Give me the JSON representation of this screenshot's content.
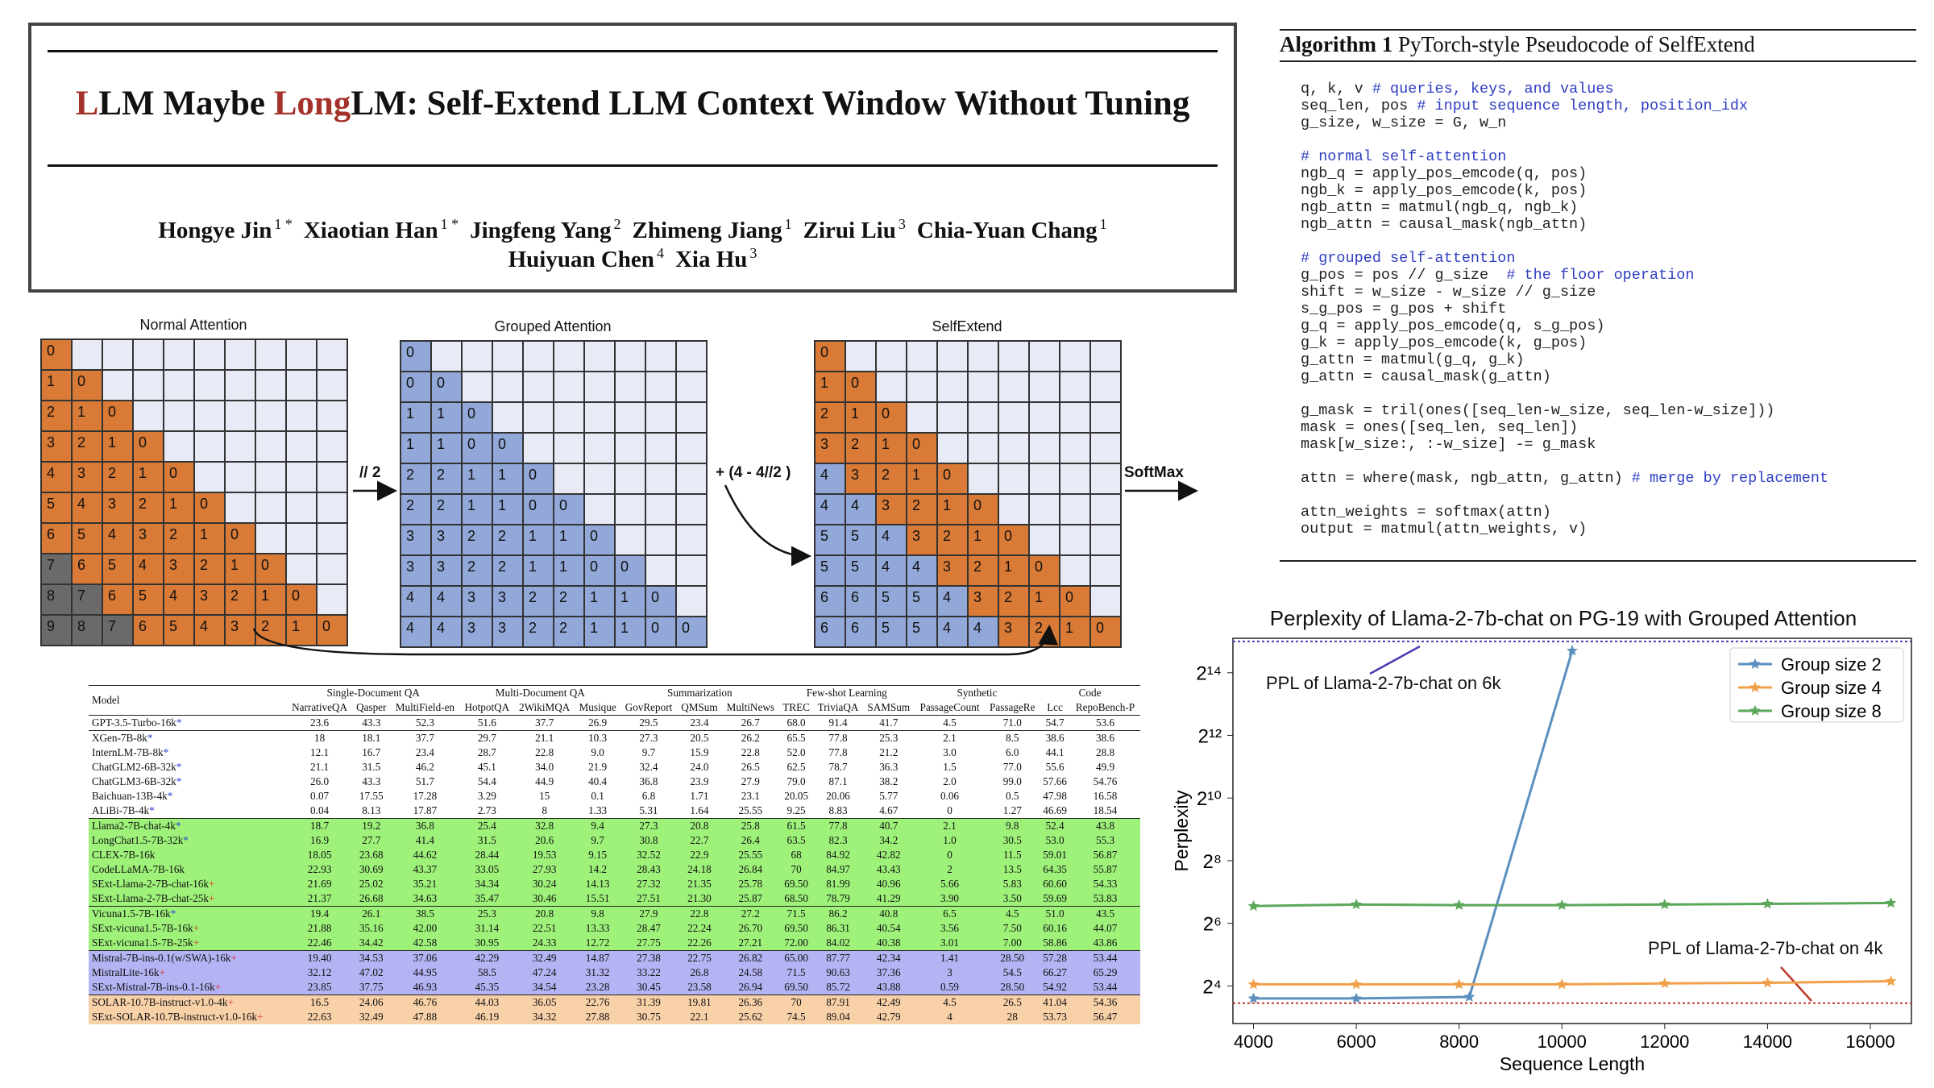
{
  "paper": {
    "title_parts": [
      "L",
      "LM Maybe ",
      "Long",
      "LM: Self-Extend LLM Context Window Without Tuning"
    ],
    "authors_line1": [
      {
        "name": "Hongye Jin",
        "aff": "1 *"
      },
      {
        "name": "Xiaotian Han",
        "aff": "1 *"
      },
      {
        "name": "Jingfeng Yang",
        "aff": "2"
      },
      {
        "name": "Zhimeng Jiang",
        "aff": "1"
      },
      {
        "name": "Zirui Liu",
        "aff": "3"
      },
      {
        "name": "Chia-Yuan Chang",
        "aff": "1"
      }
    ],
    "authors_line2": [
      {
        "name": "Huiyuan Chen",
        "aff": "4"
      },
      {
        "name": "Xia Hu",
        "aff": "3"
      }
    ]
  },
  "figure": {
    "normal_title": "Normal Attention",
    "grouped_title": "Grouped Attention",
    "selfextend_title": "SelfExtend",
    "op1": "// 2",
    "op2": "+ (4 - 4//2 )",
    "op3": "SoftMax",
    "colors": {
      "orange": "#d97a36",
      "blue": "#91a8d8",
      "gray": "#6a6a6a",
      "empty": "#e8eaf5"
    },
    "normal_rows": [
      [
        "0"
      ],
      [
        "1",
        "0"
      ],
      [
        "2",
        "1",
        "0"
      ],
      [
        "3",
        "2",
        "1",
        "0"
      ],
      [
        "4",
        "3",
        "2",
        "1",
        "0"
      ],
      [
        "5",
        "4",
        "3",
        "2",
        "1",
        "0"
      ],
      [
        "6",
        "5",
        "4",
        "3",
        "2",
        "1",
        "0"
      ],
      [
        "7",
        "6",
        "5",
        "4",
        "3",
        "2",
        "1",
        "0"
      ],
      [
        "8",
        "7",
        "6",
        "5",
        "4",
        "3",
        "2",
        "1",
        "0"
      ],
      [
        "9",
        "8",
        "7",
        "6",
        "5",
        "4",
        "3",
        "2",
        "1",
        "0"
      ]
    ],
    "grouped_rows": [
      [
        "0"
      ],
      [
        "0",
        "0"
      ],
      [
        "1",
        "1",
        "0"
      ],
      [
        "1",
        "1",
        "0",
        "0"
      ],
      [
        "2",
        "2",
        "1",
        "1",
        "0"
      ],
      [
        "2",
        "2",
        "1",
        "1",
        "0",
        "0"
      ],
      [
        "3",
        "3",
        "2",
        "2",
        "1",
        "1",
        "0"
      ],
      [
        "3",
        "3",
        "2",
        "2",
        "1",
        "1",
        "0",
        "0"
      ],
      [
        "4",
        "4",
        "3",
        "3",
        "2",
        "2",
        "1",
        "1",
        "0"
      ],
      [
        "4",
        "4",
        "3",
        "3",
        "2",
        "2",
        "1",
        "1",
        "0",
        "0"
      ]
    ],
    "selfextend_rows": [
      [
        "0"
      ],
      [
        "1",
        "0"
      ],
      [
        "2",
        "1",
        "0"
      ],
      [
        "3",
        "2",
        "1",
        "0"
      ],
      [
        "4",
        "3",
        "2",
        "1",
        "0"
      ],
      [
        "4",
        "4",
        "3",
        "2",
        "1",
        "0"
      ],
      [
        "5",
        "5",
        "4",
        "3",
        "2",
        "1",
        "0"
      ],
      [
        "5",
        "5",
        "4",
        "4",
        "3",
        "2",
        "1",
        "0"
      ],
      [
        "6",
        "6",
        "5",
        "5",
        "4",
        "3",
        "2",
        "1",
        "0"
      ],
      [
        "6",
        "6",
        "5",
        "5",
        "4",
        "4",
        "3",
        "2",
        "1",
        "0"
      ]
    ]
  },
  "algorithm": {
    "label": "Algorithm 1",
    "caption": "PyTorch-style Pseudocode of SelfExtend",
    "lines": [
      [
        "q, k, v ",
        "# queries, keys, and values"
      ],
      [
        "seq_len, pos ",
        "# input sequence length, position_idx"
      ],
      [
        "g_size, w_size = G, w_n",
        ""
      ],
      [
        "",
        ""
      ],
      [
        "",
        "# normal self-attention"
      ],
      [
        "ngb_q = apply_pos_emcode(q, pos)",
        ""
      ],
      [
        "ngb_k = apply_pos_emcode(k, pos)",
        ""
      ],
      [
        "ngb_attn = matmul(ngb_q, ngb_k)",
        ""
      ],
      [
        "ngb_attn = causal_mask(ngb_attn)",
        ""
      ],
      [
        "",
        ""
      ],
      [
        "",
        "# grouped self-attention"
      ],
      [
        "g_pos = pos // g_size  ",
        "# the floor operation"
      ],
      [
        "shift = w_size - w_size // g_size",
        ""
      ],
      [
        "s_g_pos = g_pos + shift",
        ""
      ],
      [
        "g_q = apply_pos_emcode(q, s_g_pos)",
        ""
      ],
      [
        "g_k = apply_pos_emcode(k, g_pos)",
        ""
      ],
      [
        "g_attn = matmul(g_q, g_k)",
        ""
      ],
      [
        "g_attn = causal_mask(g_attn)",
        ""
      ],
      [
        "",
        ""
      ],
      [
        "g_mask = tril(ones([seq_len-w_size, seq_len-w_size]))",
        ""
      ],
      [
        "mask = ones([seq_len, seq_len])",
        ""
      ],
      [
        "mask[w_size:, :-w_size] -= g_mask",
        ""
      ],
      [
        "",
        ""
      ],
      [
        "attn = where(mask, ngb_attn, g_attn) ",
        "# merge by replacement"
      ],
      [
        "",
        ""
      ],
      [
        "attn_weights = softmax(attn)",
        ""
      ],
      [
        "output = matmul(attn_weights, v)",
        ""
      ]
    ]
  },
  "table": {
    "model_header": "Model",
    "groups": [
      {
        "label": "Single-Document QA",
        "span": 3
      },
      {
        "label": "Multi-Document QA",
        "span": 3
      },
      {
        "label": "Summarization",
        "span": 3
      },
      {
        "label": "Few-shot Learning",
        "span": 3
      },
      {
        "label": "Synthetic",
        "span": 2
      },
      {
        "label": "Code",
        "span": 2
      }
    ],
    "columns": [
      "NarrativeQA",
      "Qasper",
      "MultiField-en",
      "HotpotQA",
      "2WikiMQA",
      "Musique",
      "GovReport",
      "QMSum",
      "MultiNews",
      "TREC",
      "TriviaQA",
      "SAMSum",
      "PassageCount",
      "PassageRe",
      "Lcc",
      "RepoBench-P"
    ],
    "rows": [
      {
        "model": "GPT-3.5-Turbo-16k",
        "mark": "*",
        "group": "none",
        "sep": true,
        "values": [
          "23.6",
          "43.3",
          "52.3",
          "51.6",
          "37.7",
          "26.9",
          "29.5",
          "23.4",
          "26.7",
          "68.0",
          "91.4",
          "41.7",
          "4.5",
          "71.0",
          "54.7",
          "53.6"
        ]
      },
      {
        "model": "XGen-7B-8k",
        "mark": "*",
        "group": "none",
        "sep": true,
        "values": [
          "18",
          "18.1",
          "37.7",
          "29.7",
          "21.1",
          "10.3",
          "27.3",
          "20.5",
          "26.2",
          "65.5",
          "77.8",
          "25.3",
          "2.1",
          "8.5",
          "38.6",
          "38.6"
        ]
      },
      {
        "model": "InternLM-7B-8k",
        "mark": "*",
        "group": "none",
        "values": [
          "12.1",
          "16.7",
          "23.4",
          "28.7",
          "22.8",
          "9.0",
          "9.7",
          "15.9",
          "22.8",
          "52.0",
          "77.8",
          "21.2",
          "3.0",
          "6.0",
          "44.1",
          "28.8"
        ]
      },
      {
        "model": "ChatGLM2-6B-32k",
        "mark": "*",
        "group": "none",
        "values": [
          "21.1",
          "31.5",
          "46.2",
          "45.1",
          "34.0",
          "21.9",
          "32.4",
          "24.0",
          "26.5",
          "62.5",
          "78.7",
          "36.3",
          "1.5",
          "77.0",
          "55.6",
          "49.9"
        ]
      },
      {
        "model": "ChatGLM3-6B-32k",
        "mark": "*",
        "group": "none",
        "values": [
          "26.0",
          "43.3",
          "51.7",
          "54.4",
          "44.9",
          "40.4",
          "36.8",
          "23.9",
          "27.9",
          "79.0",
          "87.1",
          "38.2",
          "2.0",
          "99.0",
          "57.66",
          "54.76"
        ]
      },
      {
        "model": "Baichuan-13B-4k",
        "mark": "*",
        "group": "none",
        "values": [
          "0.07",
          "17.55",
          "17.28",
          "3.29",
          "15",
          "0.1",
          "6.8",
          "1.71",
          "23.1",
          "20.05",
          "20.06",
          "5.77",
          "0.06",
          "0.5",
          "47.98",
          "16.58"
        ]
      },
      {
        "model": "ALiBi-7B-4k",
        "mark": "*",
        "group": "none",
        "values": [
          "0.04",
          "8.13",
          "17.87",
          "2.73",
          "8",
          "1.33",
          "5.31",
          "1.64",
          "25.55",
          "9.25",
          "8.83",
          "4.67",
          "0",
          "1.27",
          "46.69",
          "18.54"
        ]
      },
      {
        "model": "Llama2-7B-chat-4k",
        "mark": "*",
        "group": "green",
        "sep": true,
        "values": [
          "18.7",
          "19.2",
          "36.8",
          "25.4",
          "32.8",
          "9.4",
          "27.3",
          "20.8",
          "25.8",
          "61.5",
          "77.8",
          "40.7",
          "2.1",
          "9.8",
          "52.4",
          "43.8"
        ]
      },
      {
        "model": "LongChat1.5-7B-32k",
        "mark": "*",
        "group": "green",
        "values": [
          "16.9",
          "27.7",
          "41.4",
          "31.5",
          "20.6",
          "9.7",
          "30.8",
          "22.7",
          "26.4",
          "63.5",
          "82.3",
          "34.2",
          "1.0",
          "30.5",
          "53.0",
          "55.3"
        ]
      },
      {
        "model": "CLEX-7B-16k",
        "mark": "",
        "group": "green",
        "values": [
          "18.05",
          "23.68",
          "44.62",
          "28.44",
          "19.53",
          "9.15",
          "32.52",
          "22.9",
          "25.55",
          "68",
          "84.92",
          "42.82",
          "0",
          "11.5",
          "59.01",
          "56.87"
        ]
      },
      {
        "model": "CodeLLaMA-7B-16k",
        "mark": "",
        "group": "green",
        "values": [
          "22.93",
          "30.69",
          "43.37",
          "33.05",
          "27.93",
          "14.2",
          "28.43",
          "24.18",
          "26.84",
          "70",
          "84.97",
          "43.43",
          "2",
          "13.5",
          "64.35",
          "55.87"
        ]
      },
      {
        "model": "SExt-Llama-2-7B-chat-16k",
        "mark": "+",
        "group": "green",
        "values": [
          "21.69",
          "25.02",
          "35.21",
          "34.34",
          "30.24",
          "14.13",
          "27.32",
          "21.35",
          "25.78",
          "69.50",
          "81.99",
          "40.96",
          "5.66",
          "5.83",
          "60.60",
          "54.33"
        ]
      },
      {
        "model": "SExt-Llama-2-7B-chat-25k",
        "mark": "+",
        "group": "green",
        "values": [
          "21.37",
          "26.68",
          "34.63",
          "35.47",
          "30.46",
          "15.51",
          "27.51",
          "21.30",
          "25.87",
          "68.50",
          "78.79",
          "41.29",
          "3.90",
          "3.50",
          "59.69",
          "53.83"
        ]
      },
      {
        "model": "Vicuna1.5-7B-16k",
        "mark": "*",
        "group": "green",
        "sep": true,
        "values": [
          "19.4",
          "26.1",
          "38.5",
          "25.3",
          "20.8",
          "9.8",
          "27.9",
          "22.8",
          "27.2",
          "71.5",
          "86.2",
          "40.8",
          "6.5",
          "4.5",
          "51.0",
          "43.5"
        ]
      },
      {
        "model": "SExt-vicuna1.5-7B-16k",
        "mark": "+",
        "group": "green",
        "values": [
          "21.88",
          "35.16",
          "42.00",
          "31.14",
          "22.51",
          "13.33",
          "28.47",
          "22.24",
          "26.70",
          "69.50",
          "86.31",
          "40.54",
          "3.56",
          "7.50",
          "60.16",
          "44.07"
        ]
      },
      {
        "model": "SExt-vicuna1.5-7B-25k",
        "mark": "+",
        "group": "green",
        "values": [
          "22.46",
          "34.42",
          "42.58",
          "30.95",
          "24.33",
          "12.72",
          "27.75",
          "22.26",
          "27.21",
          "72.00",
          "84.02",
          "40.38",
          "3.01",
          "7.00",
          "58.86",
          "43.86"
        ]
      },
      {
        "model": "Mistral-7B-ins-0.1(w/SWA)-16k",
        "mark": "+",
        "group": "purple",
        "sep": true,
        "values": [
          "19.40",
          "34.53",
          "37.06",
          "42.29",
          "32.49",
          "14.87",
          "27.38",
          "22.75",
          "26.82",
          "65.00",
          "87.77",
          "42.34",
          "1.41",
          "28.50",
          "57.28",
          "53.44"
        ]
      },
      {
        "model": "MistralLite-16k",
        "mark": "+",
        "group": "purple",
        "values": [
          "32.12",
          "47.02",
          "44.95",
          "58.5",
          "47.24",
          "31.32",
          "33.22",
          "26.8",
          "24.58",
          "71.5",
          "90.63",
          "37.36",
          "3",
          "54.5",
          "66.27",
          "65.29"
        ]
      },
      {
        "model": "SExt-Mistral-7B-ins-0.1-16k",
        "mark": "+",
        "group": "purple",
        "values": [
          "23.85",
          "37.75",
          "46.93",
          "45.35",
          "34.54",
          "23.28",
          "30.45",
          "23.58",
          "26.94",
          "69.50",
          "85.72",
          "43.88",
          "0.59",
          "28.50",
          "54.92",
          "53.44"
        ]
      },
      {
        "model": "SOLAR-10.7B-instruct-v1.0-4k",
        "mark": "+",
        "group": "peach",
        "sep": true,
        "values": [
          "16.5",
          "24.06",
          "46.76",
          "44.03",
          "36.05",
          "22.76",
          "31.39",
          "19.81",
          "26.36",
          "70",
          "87.91",
          "42.49",
          "4.5",
          "26.5",
          "41.04",
          "54.36"
        ]
      },
      {
        "model": "SExt-SOLAR-10.7B-instruct-v1.0-16k",
        "mark": "+",
        "group": "peach",
        "values": [
          "22.63",
          "32.49",
          "47.88",
          "46.19",
          "34.32",
          "27.88",
          "30.75",
          "22.1",
          "25.62",
          "74.5",
          "89.04",
          "42.79",
          "4",
          "28",
          "53.73",
          "56.47"
        ]
      }
    ]
  },
  "chart_data": {
    "type": "line",
    "title": "Perplexity of Llama-2-7b-chat on PG-19 with Grouped Attention",
    "xlabel": "Sequence Length",
    "ylabel": "Perplexity",
    "xlim": [
      3600,
      16800
    ],
    "ylim_log2": [
      2.8,
      15.1
    ],
    "xticks": [
      4000,
      6000,
      8000,
      10000,
      12000,
      14000,
      16000
    ],
    "yticks_log2": [
      4,
      6,
      8,
      10,
      12,
      14
    ],
    "ytick_labels": [
      "2⁴",
      "2⁶",
      "2⁸",
      "2¹⁰",
      "2¹²",
      "2¹⁴"
    ],
    "legend": "top-right",
    "grid": false,
    "series": [
      {
        "name": "Group size 2",
        "color": "#5b8fc0",
        "marker": "star",
        "x": [
          4000,
          6000,
          8200,
          10200
        ],
        "y_log2": [
          3.6,
          3.6,
          3.65,
          14.7
        ]
      },
      {
        "name": "Group size 4",
        "color": "#f0a04a",
        "marker": "star",
        "x": [
          4000,
          6000,
          8000,
          10000,
          12000,
          14000,
          16400
        ],
        "y_log2": [
          4.05,
          4.05,
          4.05,
          4.05,
          4.08,
          4.1,
          4.15
        ]
      },
      {
        "name": "Group size 8",
        "color": "#5ba85b",
        "marker": "star",
        "x": [
          4000,
          6000,
          8000,
          10000,
          12000,
          14000,
          16400
        ],
        "y_log2": [
          6.55,
          6.6,
          6.58,
          6.58,
          6.6,
          6.62,
          6.65
        ]
      }
    ],
    "reference_lines": [
      {
        "label": "PPL of Llama-2-7b-chat on 6k",
        "y_log2": 15.0,
        "color": "#4b3cb0"
      },
      {
        "label": "PPL of Llama-2-7b-chat on 4k",
        "y_log2": 3.45,
        "color": "#c0392b"
      }
    ]
  }
}
